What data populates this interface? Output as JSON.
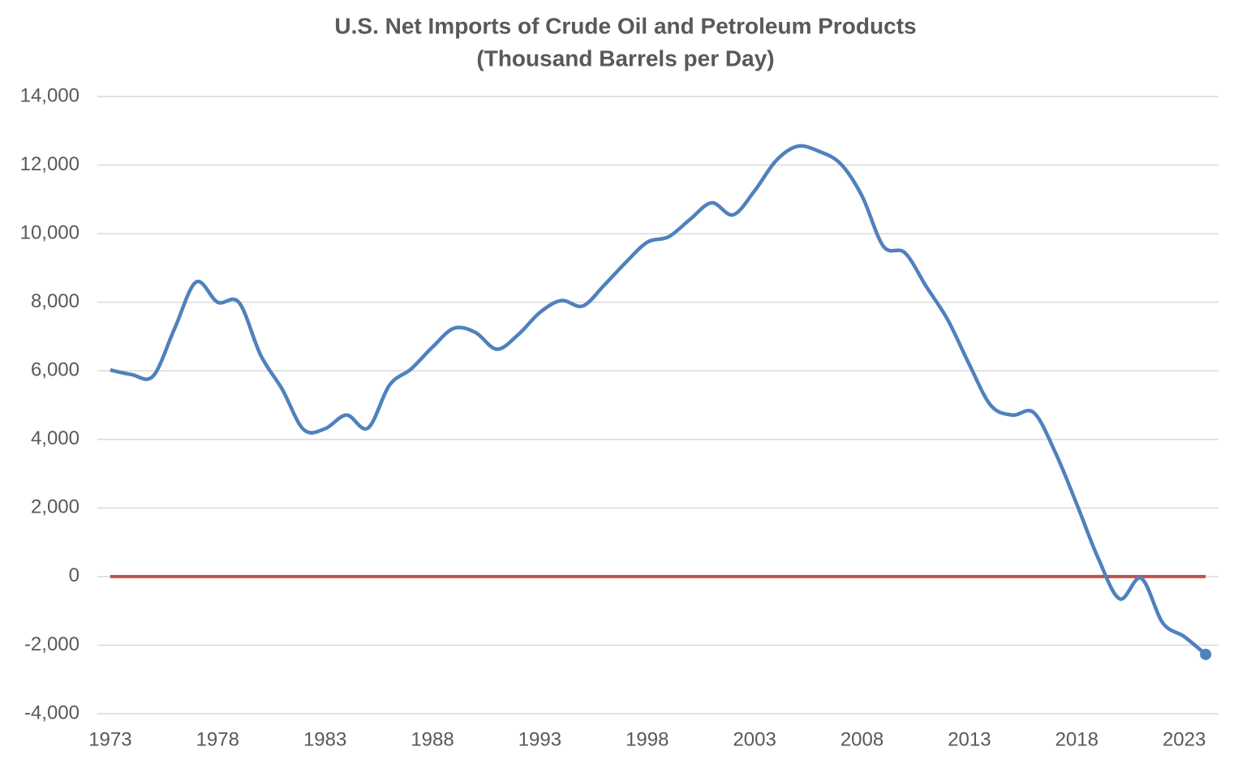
{
  "chart_data": {
    "type": "line",
    "title": "U.S. Net Imports of Crude Oil and Petroleum Products",
    "subtitle": "(Thousand Barrels per Day)",
    "x": [
      1973,
      1974,
      1975,
      1976,
      1977,
      1978,
      1979,
      1980,
      1981,
      1982,
      1983,
      1984,
      1985,
      1986,
      1987,
      1988,
      1989,
      1990,
      1991,
      1992,
      1993,
      1994,
      1995,
      1996,
      1997,
      1998,
      1999,
      2000,
      2001,
      2002,
      2003,
      2004,
      2005,
      2006,
      2007,
      2008,
      2009,
      2010,
      2011,
      2012,
      2013,
      2014,
      2015,
      2016,
      2017,
      2018,
      2019,
      2020,
      2021,
      2022,
      2023,
      2024
    ],
    "series": [
      {
        "color": "#4f81bd",
        "values": [
          6025,
          5890,
          5850,
          7240,
          8590,
          8000,
          7990,
          6460,
          5470,
          4290,
          4310,
          4710,
          4330,
          5580,
          6050,
          6690,
          7240,
          7120,
          6630,
          7060,
          7700,
          8050,
          7890,
          8500,
          9160,
          9750,
          9910,
          10420,
          10900,
          10550,
          11250,
          12130,
          12550,
          12400,
          12040,
          11100,
          9630,
          9440,
          8450,
          7480,
          6180,
          4990,
          4710,
          4780,
          3620,
          2110,
          530,
          -650,
          -50,
          -1350,
          -1750,
          -2270
        ]
      }
    ],
    "reference_line": {
      "value": 0,
      "color": "#c0504d"
    },
    "mark_last_point": true,
    "xlim": [
      1972.4,
      2024.6
    ],
    "xticks": [
      1973,
      1978,
      1983,
      1988,
      1993,
      1998,
      2003,
      2008,
      2013,
      2018,
      2023
    ],
    "ylim": [
      -4000,
      14000
    ],
    "yticks": [
      {
        "value": -4000,
        "label": "-4,000"
      },
      {
        "value": -2000,
        "label": "-2,000"
      },
      0,
      {
        "value": 2000,
        "label": "2,000"
      },
      {
        "value": 4000,
        "label": "4,000"
      },
      {
        "value": 6000,
        "label": "6,000"
      },
      {
        "value": 8000,
        "label": "8,000"
      },
      {
        "value": 10000,
        "label": "10,000"
      },
      {
        "value": 12000,
        "label": "12,000"
      },
      {
        "value": 14000,
        "label": "14,000"
      }
    ],
    "grid": true
  }
}
